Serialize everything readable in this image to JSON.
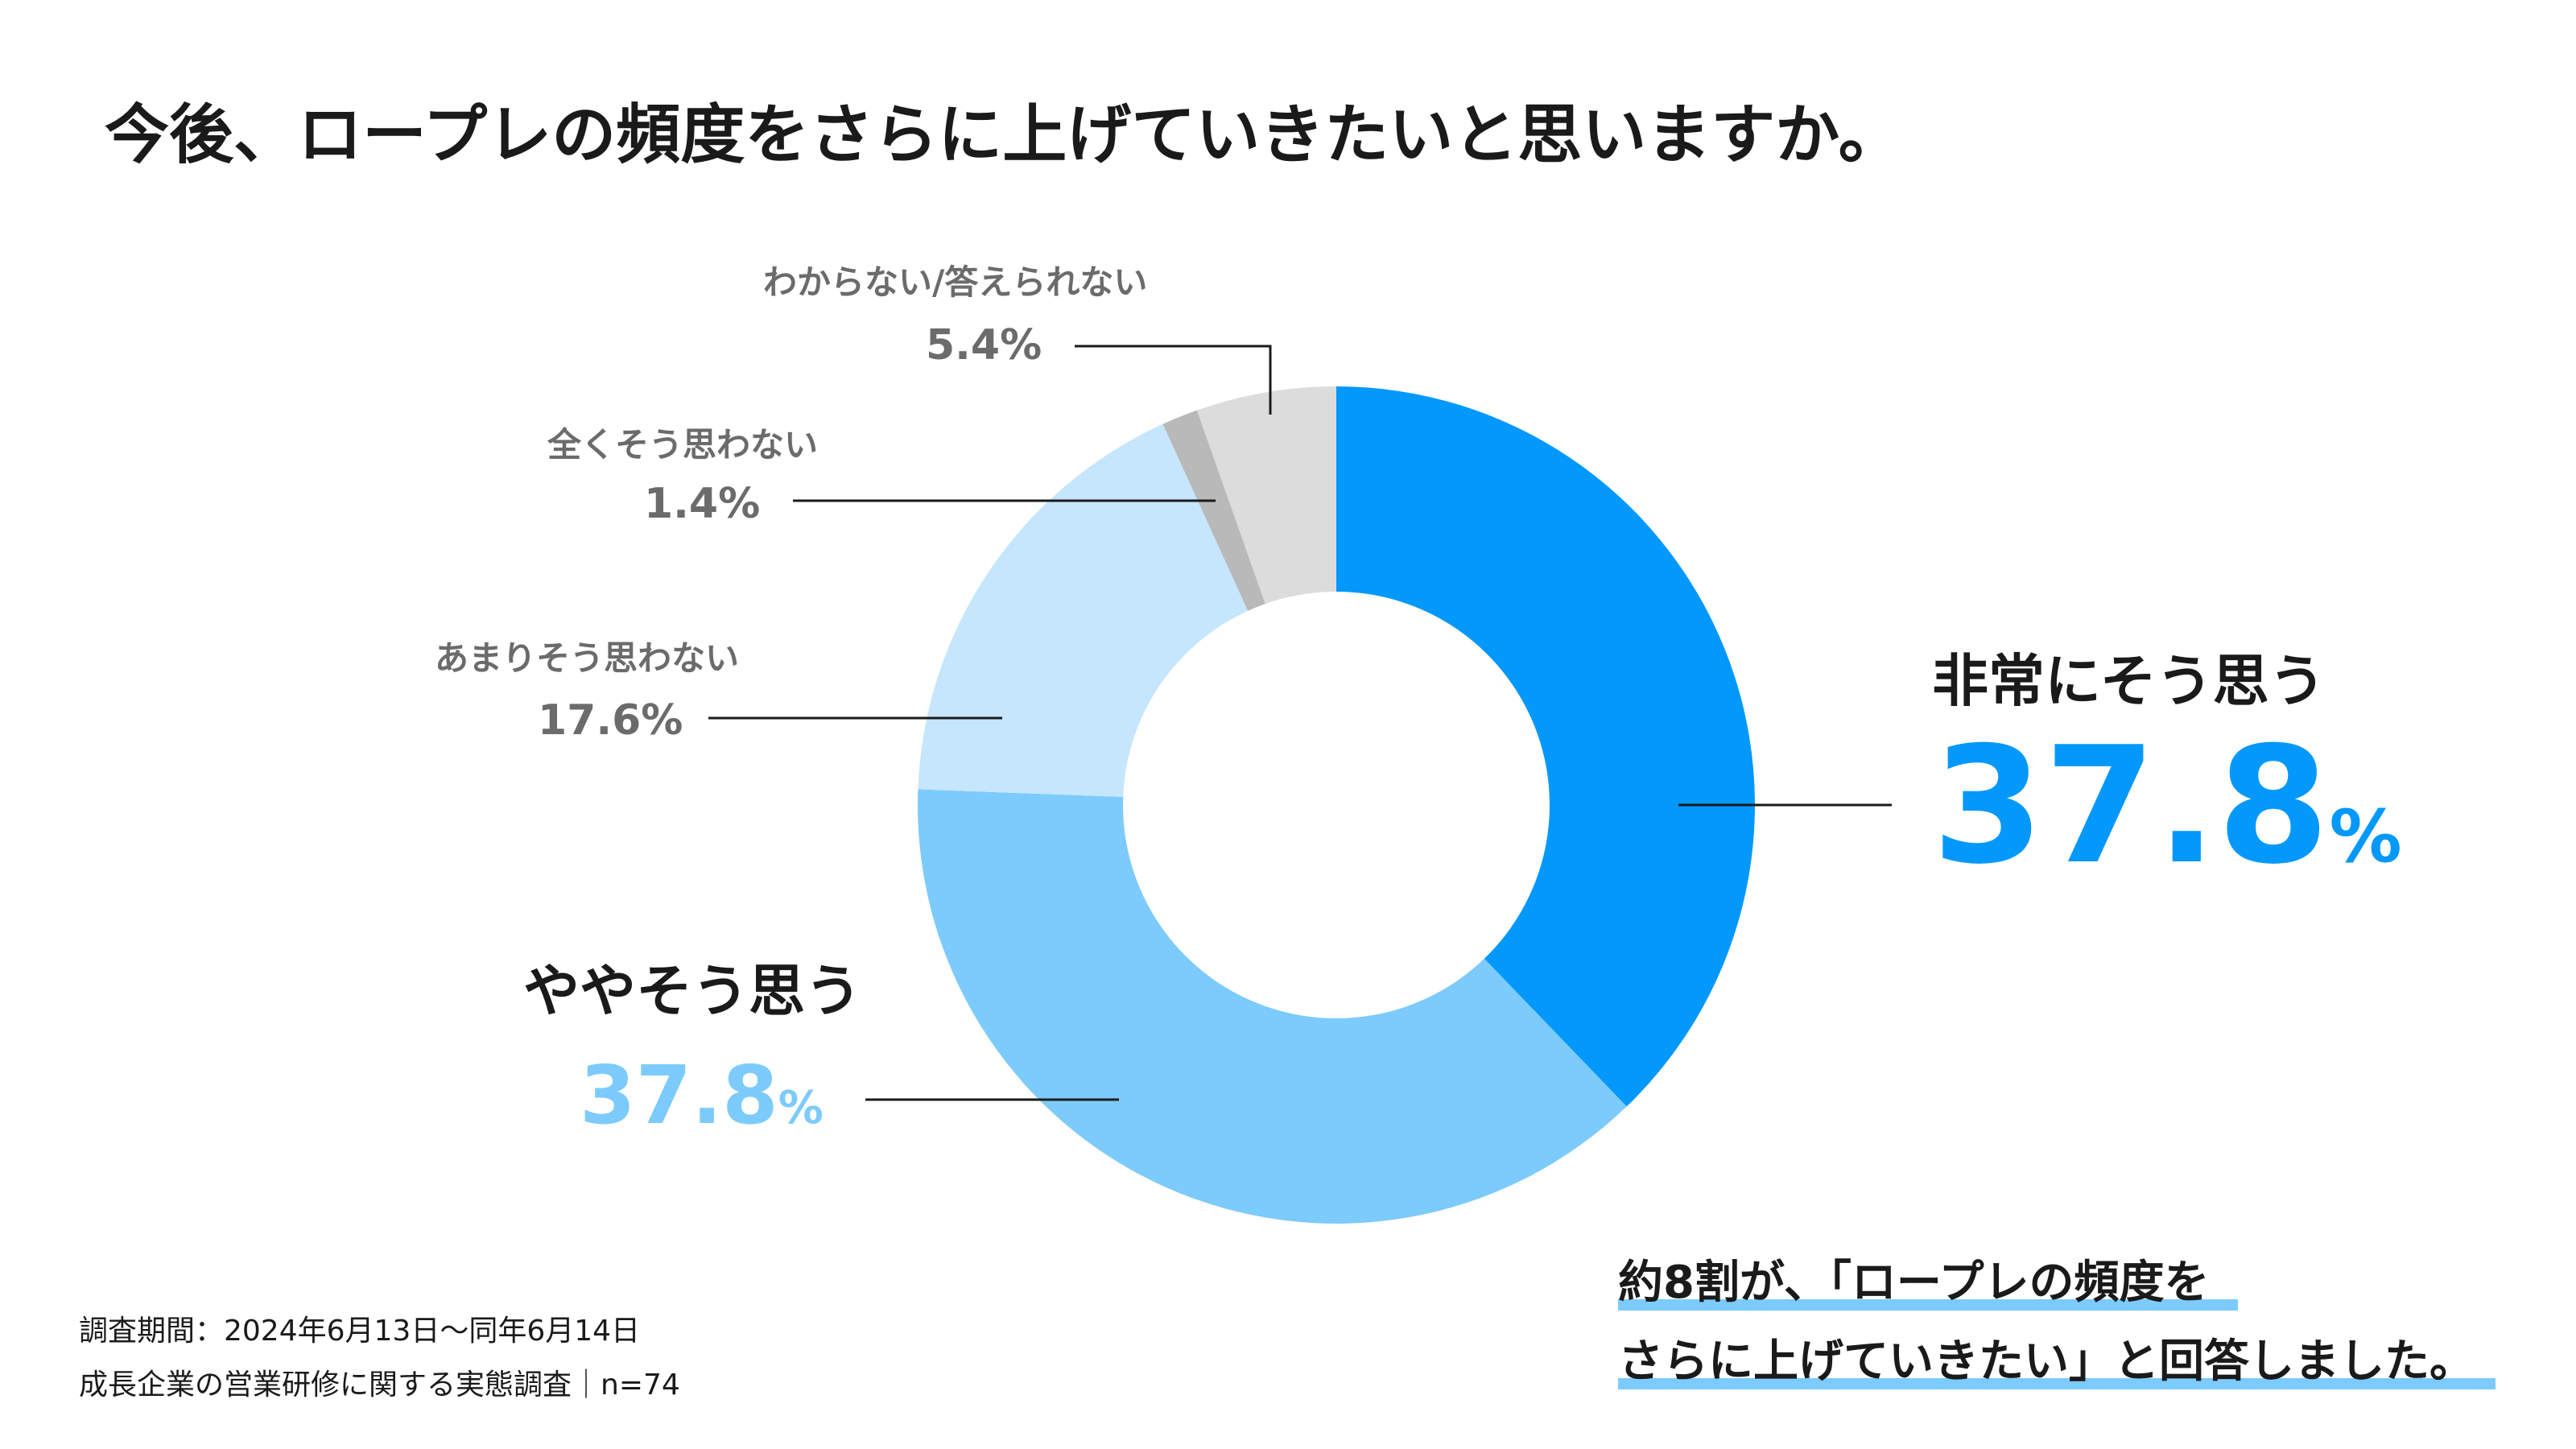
{
  "colors": {
    "very": "#0398fb",
    "somewhat": "#7ccbfc",
    "not_much": "#c5e6fd",
    "not_at_all": "#b9b9b9",
    "dont_know": "#dcdcdc",
    "callout_underline": "#7ccbfc",
    "leader": "#1a1a1a"
  },
  "chart_data": {
    "type": "pie",
    "title": "今後、ロープレの頻度をさらに上げていきたいと思いますか。",
    "donut": true,
    "slices": [
      {
        "key": "very",
        "label": "非常にそう思う",
        "value": 37.8,
        "display": "37.8",
        "unit": "%"
      },
      {
        "key": "somewhat",
        "label": "ややそう思う",
        "value": 37.8,
        "display": "37.8",
        "unit": "%"
      },
      {
        "key": "not_much",
        "label": "あまりそう思わない",
        "value": 17.6,
        "display": "17.6%"
      },
      {
        "key": "not_at_all",
        "label": "全くそう思わない",
        "value": 1.4,
        "display": "1.4%"
      },
      {
        "key": "dont_know",
        "label": "わからない/答えられない",
        "value": 5.4,
        "display": "5.4%"
      }
    ]
  },
  "footnote": {
    "period": "調査期間：2024年6月13日〜同年6月14日",
    "source": "成長企業の営業研修に関する実態調査｜n=74"
  },
  "callout": {
    "line1": "約8割が、「ロープレの頻度を",
    "line2": "さらに上げていきたい」と回答しました。"
  }
}
